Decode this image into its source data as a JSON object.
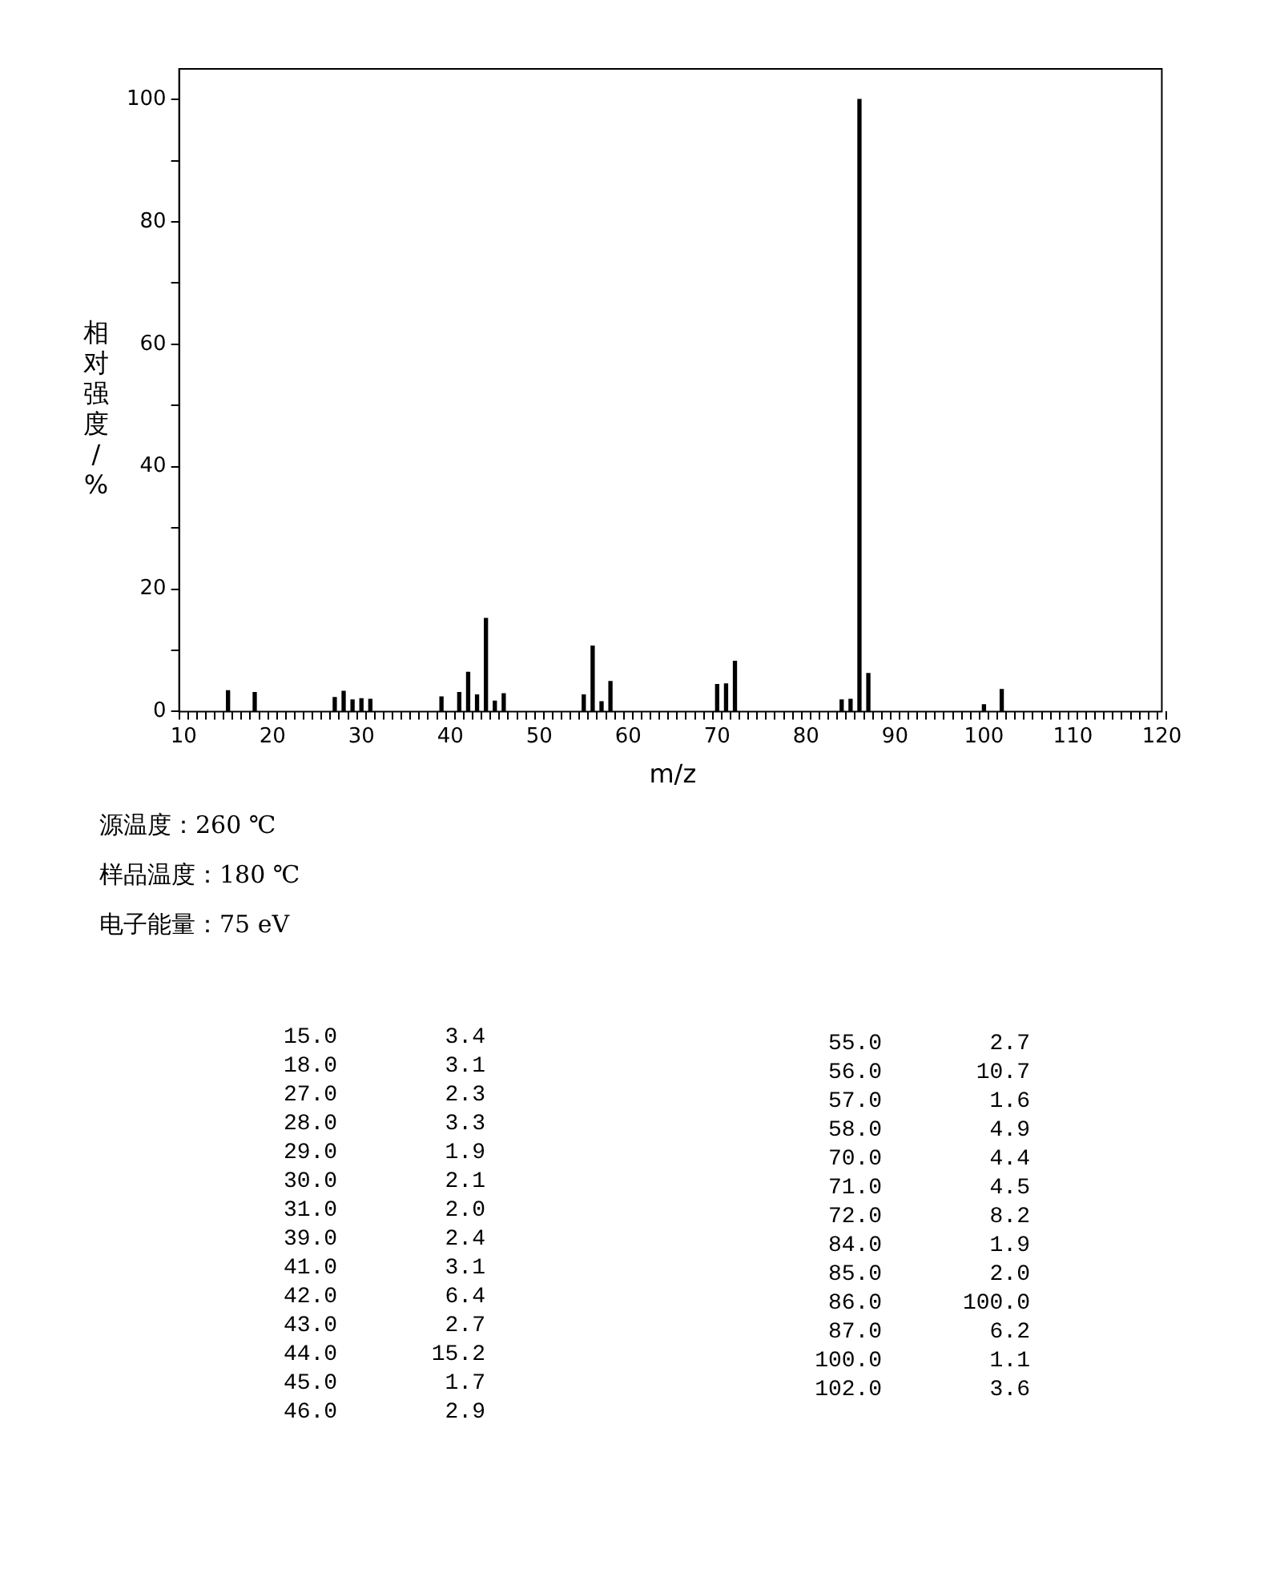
{
  "chart_data": [
    {
      "type": "bar",
      "xlabel": "m/z",
      "ylabel": "相对强度/%",
      "x": [
        15,
        18,
        27,
        28,
        29,
        30,
        31,
        39,
        41,
        42,
        43,
        44,
        45,
        46,
        55,
        56,
        57,
        58,
        70,
        71,
        72,
        84,
        85,
        86,
        87,
        100,
        102
      ],
      "values": [
        3.4,
        3.1,
        2.3,
        3.3,
        1.9,
        2.1,
        2.0,
        2.4,
        3.1,
        6.4,
        2.7,
        15.2,
        1.7,
        2.9,
        2.7,
        10.7,
        1.6,
        4.9,
        4.4,
        4.5,
        8.2,
        1.9,
        2.0,
        100.0,
        6.2,
        1.1,
        3.6
      ],
      "color": "#000000",
      "grid": false,
      "legend": false,
      "xlim": [
        10,
        120
      ],
      "xticks": [
        10,
        {
          "value": 11,
          "label": null
        },
        {
          "value": 12,
          "label": null
        },
        {
          "value": 13,
          "label": null
        },
        {
          "value": 14,
          "label": null
        },
        {
          "value": 15,
          "label": null
        },
        {
          "value": 16,
          "label": null
        },
        {
          "value": 17,
          "label": null
        },
        {
          "value": 18,
          "label": null
        },
        {
          "value": 19,
          "label": null
        },
        20,
        {
          "value": 21,
          "label": null
        },
        {
          "value": 22,
          "label": null
        },
        {
          "value": 23,
          "label": null
        },
        {
          "value": 24,
          "label": null
        },
        {
          "value": 25,
          "label": null
        },
        {
          "value": 26,
          "label": null
        },
        {
          "value": 27,
          "label": null
        },
        {
          "value": 28,
          "label": null
        },
        {
          "value": 29,
          "label": null
        },
        30,
        {
          "value": 31,
          "label": null
        },
        {
          "value": 32,
          "label": null
        },
        {
          "value": 33,
          "label": null
        },
        {
          "value": 34,
          "label": null
        },
        {
          "value": 35,
          "label": null
        },
        {
          "value": 36,
          "label": null
        },
        {
          "value": 37,
          "label": null
        },
        {
          "value": 38,
          "label": null
        },
        {
          "value": 39,
          "label": null
        },
        40,
        {
          "value": 41,
          "label": null
        },
        {
          "value": 42,
          "label": null
        },
        {
          "value": 43,
          "label": null
        },
        {
          "value": 44,
          "label": null
        },
        {
          "value": 45,
          "label": null
        },
        {
          "value": 46,
          "label": null
        },
        {
          "value": 47,
          "label": null
        },
        {
          "value": 48,
          "label": null
        },
        {
          "value": 49,
          "label": null
        },
        50,
        {
          "value": 51,
          "label": null
        },
        {
          "value": 52,
          "label": null
        },
        {
          "value": 53,
          "label": null
        },
        {
          "value": 54,
          "label": null
        },
        {
          "value": 55,
          "label": null
        },
        {
          "value": 56,
          "label": null
        },
        {
          "value": 57,
          "label": null
        },
        {
          "value": 58,
          "label": null
        },
        {
          "value": 59,
          "label": null
        },
        60,
        {
          "value": 61,
          "label": null
        },
        {
          "value": 62,
          "label": null
        },
        {
          "value": 63,
          "label": null
        },
        {
          "value": 64,
          "label": null
        },
        {
          "value": 65,
          "label": null
        },
        {
          "value": 66,
          "label": null
        },
        {
          "value": 67,
          "label": null
        },
        {
          "value": 68,
          "label": null
        },
        {
          "value": 69,
          "label": null
        },
        70,
        {
          "value": 71,
          "label": null
        },
        {
          "value": 72,
          "label": null
        },
        {
          "value": 73,
          "label": null
        },
        {
          "value": 74,
          "label": null
        },
        {
          "value": 75,
          "label": null
        },
        {
          "value": 76,
          "label": null
        },
        {
          "value": 77,
          "label": null
        },
        {
          "value": 78,
          "label": null
        },
        {
          "value": 79,
          "label": null
        },
        80,
        {
          "value": 81,
          "label": null
        },
        {
          "value": 82,
          "label": null
        },
        {
          "value": 83,
          "label": null
        },
        {
          "value": 84,
          "label": null
        },
        {
          "value": 85,
          "label": null
        },
        {
          "value": 86,
          "label": null
        },
        {
          "value": 87,
          "label": null
        },
        {
          "value": 88,
          "label": null
        },
        {
          "value": 89,
          "label": null
        },
        90,
        {
          "value": 91,
          "label": null
        },
        {
          "value": 92,
          "label": null
        },
        {
          "value": 93,
          "label": null
        },
        {
          "value": 94,
          "label": null
        },
        {
          "value": 95,
          "label": null
        },
        {
          "value": 96,
          "label": null
        },
        {
          "value": 97,
          "label": null
        },
        {
          "value": 98,
          "label": null
        },
        {
          "value": 99,
          "label": null
        },
        100,
        {
          "value": 101,
          "label": null
        },
        {
          "value": 102,
          "label": null
        },
        {
          "value": 103,
          "label": null
        },
        {
          "value": 104,
          "label": null
        },
        {
          "value": 105,
          "label": null
        },
        {
          "value": 106,
          "label": null
        },
        {
          "value": 107,
          "label": null
        },
        {
          "value": 108,
          "label": null
        },
        {
          "value": 109,
          "label": null
        },
        110,
        {
          "value": 111,
          "label": null
        },
        {
          "value": 112,
          "label": null
        },
        {
          "value": 113,
          "label": null
        },
        {
          "value": 114,
          "label": null
        },
        {
          "value": 115,
          "label": null
        },
        {
          "value": 116,
          "label": null
        },
        {
          "value": 117,
          "label": null
        },
        {
          "value": 118,
          "label": null
        },
        {
          "value": 119,
          "label": null
        },
        120
      ],
      "ylim": [
        0,
        105
      ],
      "yticks": [
        0,
        {
          "value": 10,
          "label": null
        },
        20,
        {
          "value": 30,
          "label": null
        },
        40,
        {
          "value": 50,
          "label": null
        },
        60,
        {
          "value": 70,
          "label": null
        },
        80,
        {
          "value": 90,
          "label": null
        },
        100
      ],
      "annotations": [
        "源温度：260 ℃",
        "样品温度：180 ℃",
        "电子能量：75 eV"
      ]
    },
    {
      "type": "other",
      "annotations": [
        "15.0        3.4",
        "18.0        3.1",
        "27.0        2.3",
        "28.0        3.3",
        "29.0        1.9",
        "30.0        2.1",
        "31.0        2.0",
        "39.0        2.4",
        "41.0        3.1",
        "42.0        6.4",
        "43.0        2.7",
        "44.0       15.2",
        "45.0        1.7",
        "46.0        2.9",
        "55.0        2.7",
        "56.0       10.7",
        "57.0        1.6",
        "58.0        4.9",
        "70.0        4.4",
        "71.0        4.5",
        "72.0        8.2",
        "84.0        1.9",
        "85.0        2.0",
        "86.0      100.0",
        "87.0        6.2",
        "100.0        1.1",
        "102.0        3.6"
      ]
    }
  ]
}
